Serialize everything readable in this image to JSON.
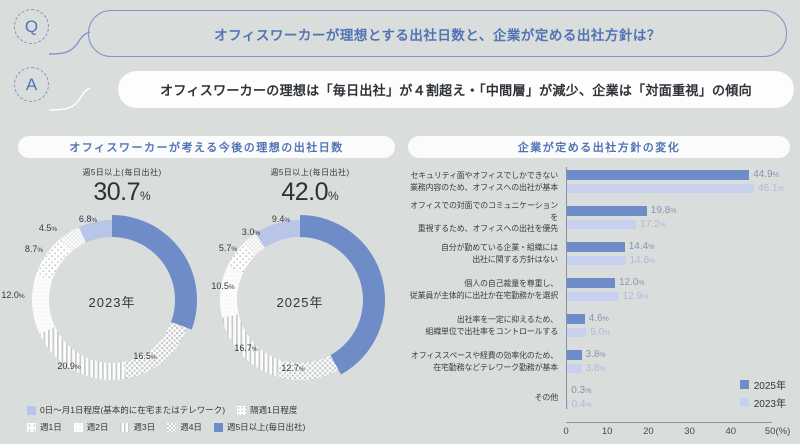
{
  "colors": {
    "background": "#d9dddb",
    "accent_blue": "#5274b6",
    "bubble_border": "#7d96c8",
    "donut_blue": "#6e8cc8",
    "periwinkle": "#b9c5e8",
    "bar_2025": "#6e8cc8",
    "bar_2023": "#c7d0ee",
    "pattern_gray": "#c6cacd",
    "text_dark": "#34383e",
    "axis_gray": "#8e9296"
  },
  "question": {
    "badge": "Q",
    "text": "オフィスワーカーが理想とする出社日数と、企業が定める出社方針は？"
  },
  "answer": {
    "badge": "A",
    "text": "オフィスワーカーの理想は「毎日出社」が４割超え・「中間層」が減少、企業は「対面重視」の傾向"
  },
  "left_panel": {
    "title": "オフィスワーカーが考える今後の理想の出社日数",
    "legend_row1": [
      {
        "label": "0日〜月1日程度(基本的に在宅またはテレワーク)",
        "style": "solid-periwinkle"
      },
      {
        "label": "隔週1日程度",
        "style": "fine-dots"
      }
    ],
    "legend_row2": [
      {
        "label": "週1日",
        "style": "diag-dots"
      },
      {
        "label": "週2日",
        "style": "plain"
      },
      {
        "label": "週3日",
        "style": "stripes"
      },
      {
        "label": "週4日",
        "style": "check"
      },
      {
        "label": "週5日以上(毎日出社)",
        "style": "solid-blue"
      }
    ]
  },
  "right_panel": {
    "title": "企業が定める出社方針の変化"
  },
  "chart_data": [
    {
      "type": "pie",
      "variant": "donut",
      "year": "2023年",
      "highlight_label": "週5日以上(毎日出社)",
      "highlight_value": "30.7",
      "unit": "%",
      "segments": [
        {
          "label": "週5日以上(毎日出社)",
          "value": 30.7,
          "display": "30.7",
          "style": "solid-blue"
        },
        {
          "label": "週4日",
          "value": 16.5,
          "display": "16.5",
          "style": "check"
        },
        {
          "label": "週3日",
          "value": 20.9,
          "display": "20.9",
          "style": "stripes"
        },
        {
          "label": "週2日",
          "value": 12.0,
          "display": "12.0",
          "style": "plain"
        },
        {
          "label": "週1日",
          "value": 8.7,
          "display": "8.7",
          "style": "diag-dots"
        },
        {
          "label": "隔週1日程度",
          "value": 4.5,
          "display": "4.5",
          "style": "fine-dots"
        },
        {
          "label": "0日〜月1日程度(基本的に在宅またはテレワーク)",
          "value": 6.8,
          "display": "6.8",
          "style": "solid-periwinkle"
        }
      ]
    },
    {
      "type": "pie",
      "variant": "donut",
      "year": "2025年",
      "highlight_label": "週5日以上(毎日出社)",
      "highlight_value": "42.0",
      "unit": "%",
      "segments": [
        {
          "label": "週5日以上(毎日出社)",
          "value": 42.0,
          "display": "42.0",
          "style": "solid-blue"
        },
        {
          "label": "週4日",
          "value": 12.7,
          "display": "12.7",
          "style": "check"
        },
        {
          "label": "週3日",
          "value": 16.7,
          "display": "16.7",
          "style": "stripes"
        },
        {
          "label": "週2日",
          "value": 10.5,
          "display": "10.5",
          "style": "plain"
        },
        {
          "label": "週1日",
          "value": 5.7,
          "display": "5.7",
          "style": "diag-dots"
        },
        {
          "label": "隔週1日程度",
          "value": 3.0,
          "display": "3.0",
          "style": "fine-dots"
        },
        {
          "label": "0日〜月1日程度(基本的に在宅またはテレワーク)",
          "value": 9.4,
          "display": "9.4",
          "style": "solid-periwinkle"
        }
      ]
    },
    {
      "type": "bar",
      "orientation": "horizontal",
      "title": "企業が定める出社方針の変化",
      "xlim": [
        0,
        50
      ],
      "xticks": [
        "0",
        "10",
        "20",
        "30",
        "40",
        "50(%)"
      ],
      "series": [
        {
          "name": "2025年",
          "color": "#6e8cc8"
        },
        {
          "name": "2023年",
          "color": "#c7d0ee"
        }
      ],
      "categories": [
        {
          "label_lines": [
            "セキュリティ面やオフィスでしかできない",
            "業務内容のため、オフィスへの出社が基本"
          ],
          "values": [
            "44.9",
            "46.1"
          ]
        },
        {
          "label_lines": [
            "オフィスでの対面でのコミュニケーションを",
            "重視するため、オフィスへの出社を優先"
          ],
          "values": [
            "19.8",
            "17.2"
          ]
        },
        {
          "label_lines": [
            "自分が勤めている企業・組織には",
            "出社に関する方針はない"
          ],
          "values": [
            "14.4",
            "14.6"
          ]
        },
        {
          "label_lines": [
            "個人の自己裁量を尊重し、",
            "従業員が主体的に出社か在宅勤務かを選択"
          ],
          "values": [
            "12.0",
            "12.9"
          ]
        },
        {
          "label_lines": [
            "出社率を一定に抑えるため、",
            "組織単位で出社率をコントロールする"
          ],
          "values": [
            "4.6",
            "5.0"
          ]
        },
        {
          "label_lines": [
            "オフィススペースや経費の効率化のため、",
            "在宅勤務などテレワーク勤務が基本"
          ],
          "values": [
            "3.8",
            "3.8"
          ]
        },
        {
          "label_lines": [
            "その他"
          ],
          "values": [
            "0.3",
            "0.4"
          ]
        }
      ]
    }
  ]
}
